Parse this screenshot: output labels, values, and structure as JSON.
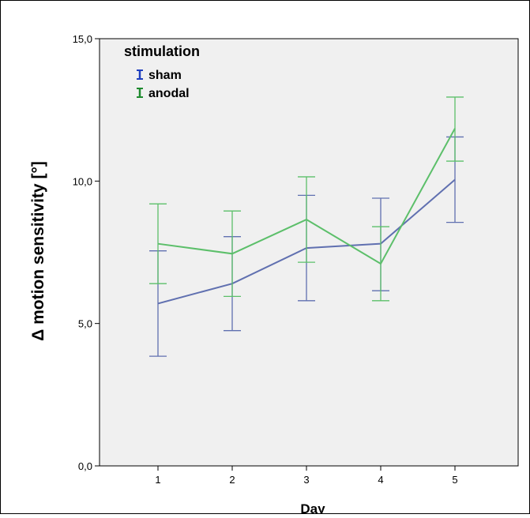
{
  "chart_data": {
    "type": "line",
    "title": "",
    "xlabel": "Day",
    "ylabel": "Δ motion sensitivity [°]",
    "x": [
      1,
      2,
      3,
      4,
      5
    ],
    "xticks": [
      "1",
      "2",
      "3",
      "4",
      "5"
    ],
    "ylim": [
      0,
      15
    ],
    "yticks": [
      "0,0",
      "5,0",
      "10,0",
      "15,0"
    ],
    "ytick_values": [
      0,
      5,
      10,
      15
    ],
    "grid": false,
    "legend": {
      "title": "stimulation",
      "placement": "top-left"
    },
    "series": [
      {
        "name": "sham",
        "color": "#6070b0",
        "legend_color": "#1f3fbf",
        "values": [
          5.7,
          6.4,
          7.65,
          7.8,
          10.05
        ],
        "error_low": [
          3.85,
          4.75,
          5.8,
          6.15,
          8.55
        ],
        "error_high": [
          7.55,
          8.05,
          9.5,
          9.4,
          11.55
        ]
      },
      {
        "name": "anodal",
        "color": "#5cbf6a",
        "legend_color": "#1e8a2e",
        "values": [
          7.8,
          7.45,
          8.65,
          7.1,
          11.85
        ],
        "error_low": [
          6.4,
          5.95,
          7.15,
          5.8,
          10.7
        ],
        "error_high": [
          9.2,
          8.95,
          10.15,
          8.4,
          12.95
        ]
      }
    ]
  }
}
